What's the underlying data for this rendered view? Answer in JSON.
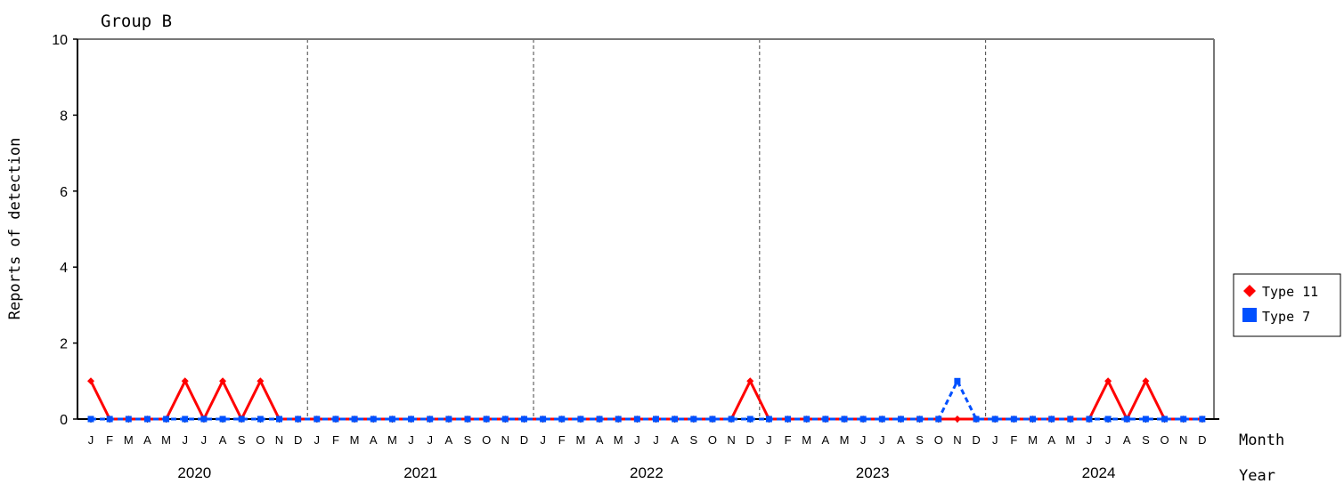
{
  "chart_data": {
    "type": "line",
    "title": "Group B",
    "ylabel": "Reports of detection",
    "ylim": [
      0,
      10
    ],
    "yticks": [
      0,
      2,
      4,
      6,
      8,
      10
    ],
    "x_month_label": "Month",
    "x_year_label": "Year",
    "years": [
      "2020",
      "2021",
      "2022",
      "2023",
      "2024"
    ],
    "month_letters": [
      "J",
      "F",
      "M",
      "A",
      "M",
      "J",
      "J",
      "A",
      "S",
      "O",
      "N",
      "D"
    ],
    "legend_position": "right",
    "series": [
      {
        "name": "Type 11",
        "color": "#ff0000",
        "marker": "diamond",
        "line_style": "solid",
        "values": [
          1,
          0,
          0,
          0,
          0,
          1,
          0,
          1,
          0,
          1,
          0,
          0,
          0,
          0,
          0,
          0,
          0,
          0,
          0,
          0,
          0,
          0,
          0,
          0,
          0,
          0,
          0,
          0,
          0,
          0,
          0,
          0,
          0,
          0,
          0,
          1,
          0,
          0,
          0,
          0,
          0,
          0,
          0,
          0,
          0,
          0,
          0,
          0,
          0,
          0,
          0,
          0,
          0,
          0,
          1,
          0,
          1,
          0,
          0,
          0
        ]
      },
      {
        "name": "Type 7",
        "color": "#0050ff",
        "marker": "square",
        "line_style": "dashed",
        "values": [
          0,
          0,
          0,
          0,
          0,
          0,
          0,
          0,
          0,
          0,
          0,
          0,
          0,
          0,
          0,
          0,
          0,
          0,
          0,
          0,
          0,
          0,
          0,
          0,
          0,
          0,
          0,
          0,
          0,
          0,
          0,
          0,
          0,
          0,
          0,
          0,
          0,
          0,
          0,
          0,
          0,
          0,
          0,
          0,
          0,
          0,
          1,
          0,
          0,
          0,
          0,
          0,
          0,
          0,
          0,
          0,
          0,
          0,
          0,
          0
        ]
      }
    ]
  }
}
